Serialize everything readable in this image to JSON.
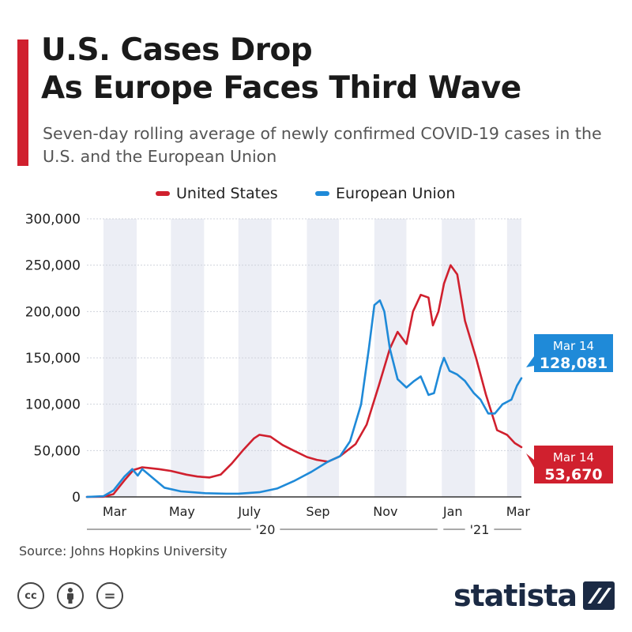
{
  "title": {
    "line1": "U.S. Cases Drop",
    "line2": "As Europe Faces Third Wave"
  },
  "subtitle": "Seven-day rolling average of newly confirmed COVID-19 cases in the U.S. and the European Union",
  "source": "Source: Johns Hopkins University",
  "brand": {
    "logo_text": "statista"
  },
  "license_icons": [
    {
      "icon": "creative-commons-icon",
      "label": "cc"
    },
    {
      "icon": "attribution-person-icon",
      "label": ""
    },
    {
      "icon": "no-derivatives-icon",
      "label": "="
    }
  ],
  "colors": {
    "accent": "#d0202e",
    "us": "#d0202e",
    "eu": "#1f8ad8",
    "band": "#eceef5",
    "navy": "#1b2a44"
  },
  "chart_data": {
    "type": "line",
    "ylim": [
      0,
      300000
    ],
    "yticks": [
      0,
      50000,
      100000,
      150000,
      200000,
      250000,
      300000
    ],
    "ytick_labels": [
      "0",
      "50,000",
      "100,000",
      "150,000",
      "200,000",
      "250,000",
      "300,000"
    ],
    "xlim": [
      "2020-02-15",
      "2021-03-14"
    ],
    "xticks": [
      {
        "date": "2020-03-01",
        "label": "Mar"
      },
      {
        "date": "2020-05-01",
        "label": "May"
      },
      {
        "date": "2020-07-01",
        "label": "July"
      },
      {
        "date": "2020-09-01",
        "label": "Sep"
      },
      {
        "date": "2020-11-01",
        "label": "Nov"
      },
      {
        "date": "2021-01-01",
        "label": "Jan"
      },
      {
        "date": "2021-03-01",
        "label": "Mar"
      }
    ],
    "year_labels": [
      {
        "label": "'20",
        "from": "2020-02-15",
        "to": "2020-12-31"
      },
      {
        "label": "'21",
        "from": "2021-01-01",
        "to": "2021-03-14"
      }
    ],
    "band_months": [
      "2020-03",
      "2020-05",
      "2020-07",
      "2020-09",
      "2020-11",
      "2021-01",
      "2021-03"
    ],
    "grid": true,
    "legend_position": "top-center",
    "series": [
      {
        "name": "United States",
        "color": "#d0202e",
        "x": [
          "2020-02-15",
          "2020-03-01",
          "2020-03-10",
          "2020-03-20",
          "2020-03-28",
          "2020-04-05",
          "2020-04-12",
          "2020-04-20",
          "2020-05-01",
          "2020-05-15",
          "2020-05-25",
          "2020-06-05",
          "2020-06-15",
          "2020-06-25",
          "2020-07-05",
          "2020-07-15",
          "2020-07-20",
          "2020-07-30",
          "2020-08-10",
          "2020-08-20",
          "2020-09-01",
          "2020-09-10",
          "2020-09-20",
          "2020-10-01",
          "2020-10-15",
          "2020-10-25",
          "2020-11-05",
          "2020-11-15",
          "2020-11-22",
          "2020-11-30",
          "2020-12-06",
          "2020-12-13",
          "2020-12-20",
          "2020-12-24",
          "2020-12-29",
          "2021-01-03",
          "2021-01-09",
          "2021-01-15",
          "2021-01-22",
          "2021-02-01",
          "2021-02-10",
          "2021-02-20",
          "2021-03-01",
          "2021-03-08",
          "2021-03-14"
        ],
        "values": [
          0,
          200,
          3000,
          18000,
          29000,
          32000,
          31000,
          30000,
          28000,
          24000,
          22000,
          21000,
          24000,
          36000,
          50000,
          63000,
          67000,
          65000,
          56000,
          50000,
          43000,
          40000,
          38000,
          44000,
          57000,
          78000,
          120000,
          160000,
          178000,
          165000,
          200000,
          218000,
          215000,
          185000,
          200000,
          230000,
          250000,
          240000,
          190000,
          150000,
          110000,
          72000,
          67000,
          58000,
          53670
        ]
      },
      {
        "name": "European Union",
        "color": "#1f8ad8",
        "x": [
          "2020-02-15",
          "2020-03-01",
          "2020-03-10",
          "2020-03-20",
          "2020-03-27",
          "2020-04-01",
          "2020-04-05",
          "2020-04-15",
          "2020-04-25",
          "2020-05-10",
          "2020-06-01",
          "2020-06-20",
          "2020-07-01",
          "2020-07-20",
          "2020-08-05",
          "2020-08-20",
          "2020-09-05",
          "2020-09-20",
          "2020-10-01",
          "2020-10-10",
          "2020-10-20",
          "2020-10-27",
          "2020-11-01",
          "2020-11-06",
          "2020-11-10",
          "2020-11-15",
          "2020-11-22",
          "2020-11-30",
          "2020-12-07",
          "2020-12-13",
          "2020-12-20",
          "2020-12-25",
          "2020-12-31",
          "2021-01-03",
          "2021-01-08",
          "2021-01-15",
          "2021-01-22",
          "2021-01-30",
          "2021-02-05",
          "2021-02-12",
          "2021-02-18",
          "2021-02-25",
          "2021-03-05",
          "2021-03-10",
          "2021-03-14"
        ],
        "values": [
          0,
          800,
          7000,
          22000,
          30000,
          23000,
          30000,
          20000,
          10000,
          6000,
          4000,
          3500,
          3500,
          5000,
          9000,
          17000,
          27000,
          38000,
          44000,
          60000,
          100000,
          160000,
          207000,
          212000,
          200000,
          160000,
          127000,
          118000,
          125000,
          130000,
          110000,
          112000,
          140000,
          150000,
          136000,
          132000,
          125000,
          112000,
          105000,
          90000,
          90000,
          100000,
          105000,
          120000,
          128081
        ]
      }
    ],
    "end_callouts": [
      {
        "series": "European Union",
        "date": "Mar 14",
        "value": "128,081",
        "color": "#1f8ad8"
      },
      {
        "series": "United States",
        "date": "Mar 14",
        "value": "53,670",
        "color": "#d0202e"
      }
    ]
  }
}
